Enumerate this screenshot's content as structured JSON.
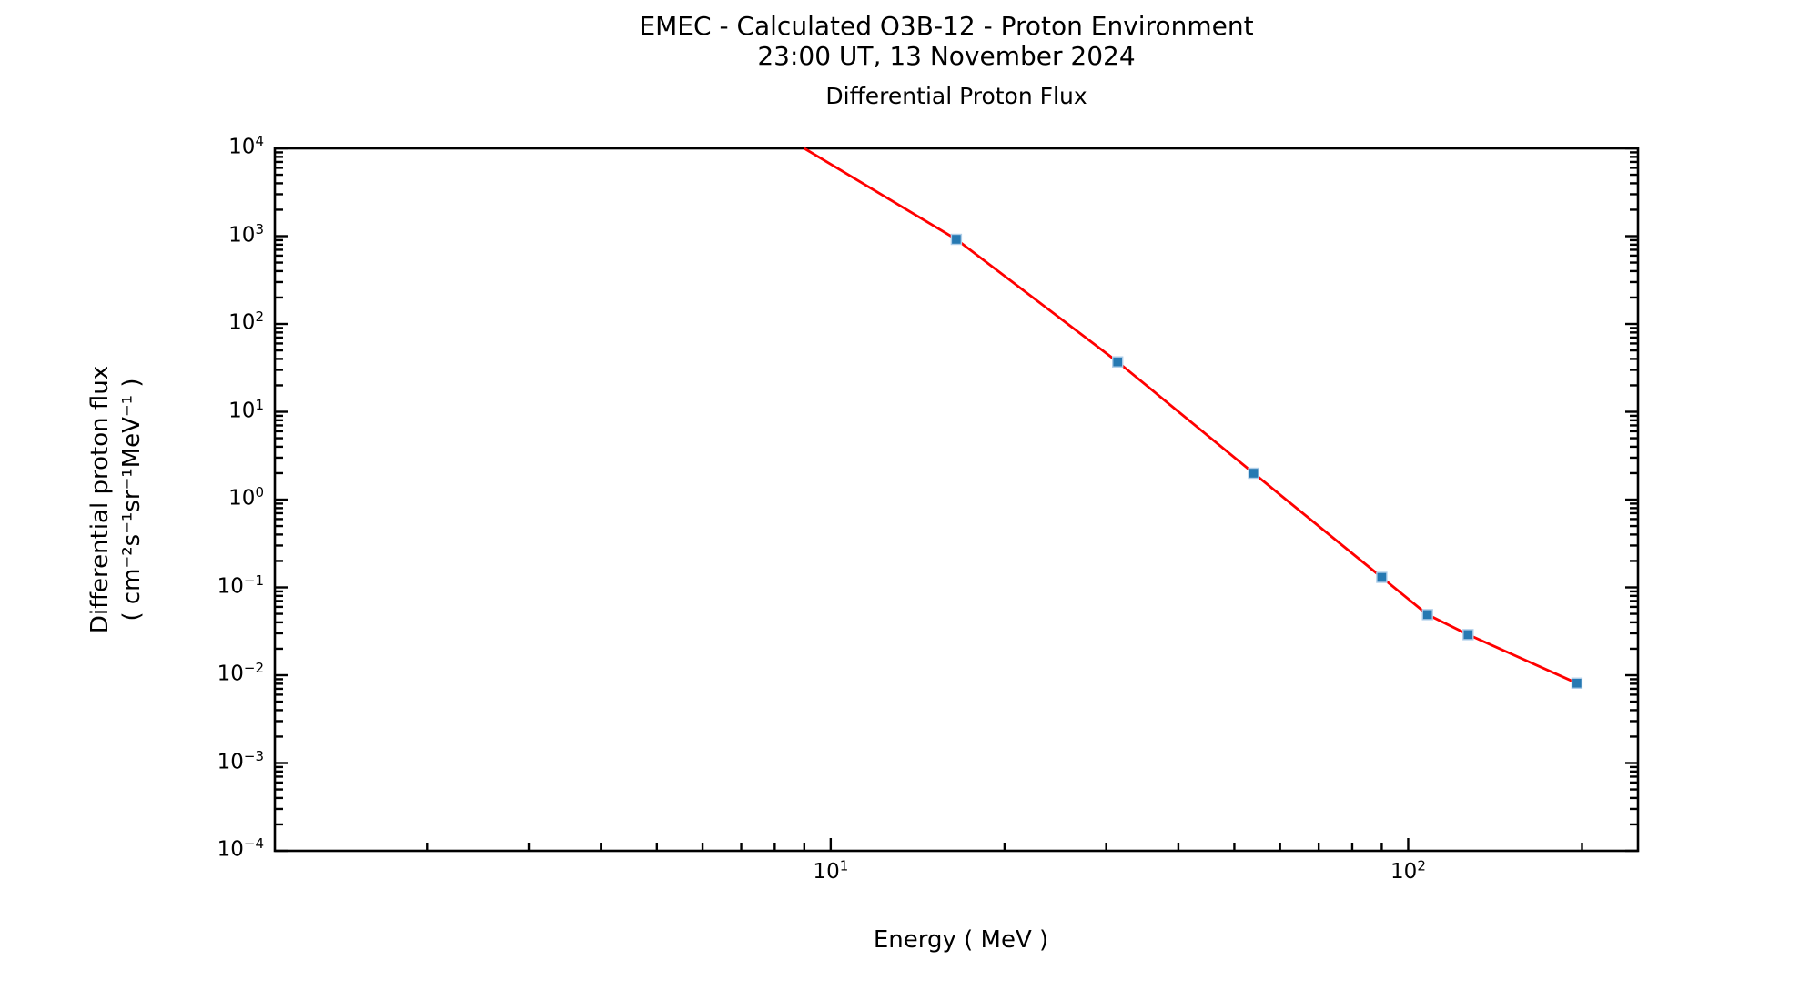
{
  "figure": {
    "title_line1": "EMEC - Calculated O3B-12 - Proton Environment",
    "title_line2": "23:00 UT, 13 November 2024",
    "axes_title": "Differential Proton Flux"
  },
  "axes": {
    "x": {
      "label": "Energy ( MeV )"
    },
    "y": {
      "label_line1": "Differential proton flux",
      "label_line2": "( cm⁻²s⁻¹sr⁻¹MeV⁻¹ )"
    }
  },
  "chart_data": {
    "type": "line",
    "title": "Differential Proton Flux",
    "xlabel": "Energy ( MeV )",
    "ylabel": "Differential proton flux ( cm⁻²s⁻¹sr⁻¹MeV⁻¹ )",
    "x_scale": "log",
    "y_scale": "log",
    "xlim": [
      1.09,
      250
    ],
    "ylim": [
      0.0001,
      10000.0
    ],
    "x_major_tick_exponents": [
      1,
      2
    ],
    "y_major_tick_exponents": [
      4,
      3,
      2,
      1,
      0,
      -1,
      -2,
      -3,
      -4
    ],
    "grid": false,
    "legend": null,
    "frame_color": "#000000",
    "series": [
      {
        "name": "Differential proton flux",
        "line_color": "#ff0000",
        "line_width": 2.8,
        "marker_shape": "square",
        "marker_color": "#2679b2",
        "marker_edge_color": "#aecde8",
        "marker_size": 11,
        "clipped_entry_point": {
          "energy_mev": 9.0,
          "flux": 10000.0
        },
        "points": [
          {
            "energy_mev": 16.5,
            "flux": 920.0
          },
          {
            "energy_mev": 31.4,
            "flux": 37.0
          },
          {
            "energy_mev": 54.0,
            "flux": 2.0
          },
          {
            "energy_mev": 90.0,
            "flux": 0.13
          },
          {
            "energy_mev": 108.0,
            "flux": 0.049
          },
          {
            "energy_mev": 127.0,
            "flux": 0.029
          },
          {
            "energy_mev": 196.0,
            "flux": 0.0081
          }
        ]
      }
    ]
  }
}
